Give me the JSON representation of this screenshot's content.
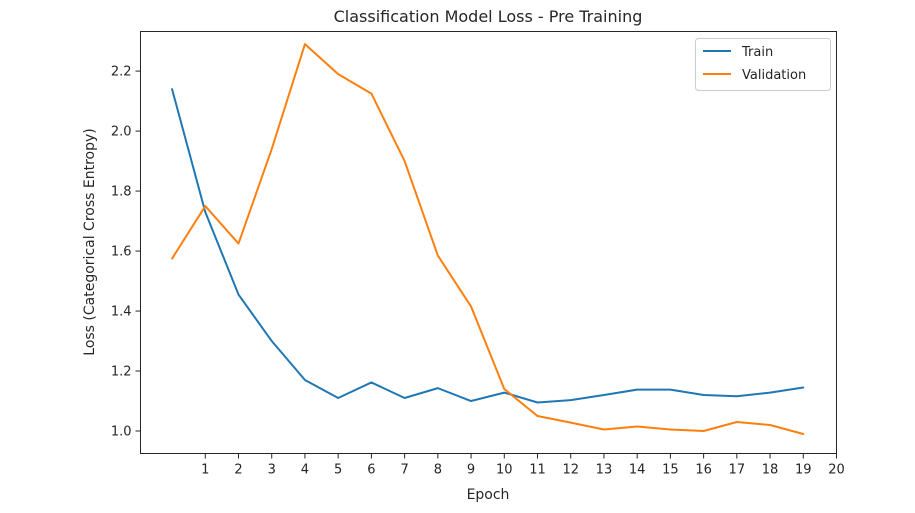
{
  "chart_data": {
    "type": "line",
    "title": "Classification Model Loss - Pre Training",
    "xlabel": "Epoch",
    "ylabel": "Loss (Categorical Cross Entropy)",
    "x": [
      0,
      1,
      2,
      3,
      4,
      5,
      6,
      7,
      8,
      9,
      10,
      11,
      12,
      13,
      14,
      15,
      16,
      17,
      18,
      19
    ],
    "x_ticks": [
      "1",
      "2",
      "3",
      "4",
      "5",
      "6",
      "7",
      "8",
      "9",
      "10",
      "11",
      "12",
      "13",
      "14",
      "15",
      "16",
      "17",
      "18",
      "19",
      "20"
    ],
    "y_ticks": [
      "1.0",
      "1.2",
      "1.4",
      "1.6",
      "1.8",
      "2.0",
      "2.2"
    ],
    "xlim": [
      -0.95,
      20
    ],
    "ylim": [
      0.925,
      2.332
    ],
    "grid": false,
    "legend_position": "top-right",
    "series": [
      {
        "name": "Train",
        "color": "#1f77b4",
        "values": [
          2.14,
          1.73,
          1.455,
          1.3,
          1.17,
          1.11,
          1.162,
          1.11,
          1.143,
          1.1,
          1.128,
          1.095,
          1.103,
          1.12,
          1.138,
          1.138,
          1.12,
          1.116,
          1.128,
          1.145
        ]
      },
      {
        "name": "Validation",
        "color": "#ff7f0e",
        "values": [
          1.575,
          1.75,
          1.625,
          1.94,
          2.29,
          2.19,
          2.125,
          1.9,
          1.585,
          1.415,
          1.14,
          1.05,
          1.028,
          1.005,
          1.015,
          1.005,
          1.0,
          1.03,
          1.02,
          0.99
        ]
      }
    ]
  }
}
